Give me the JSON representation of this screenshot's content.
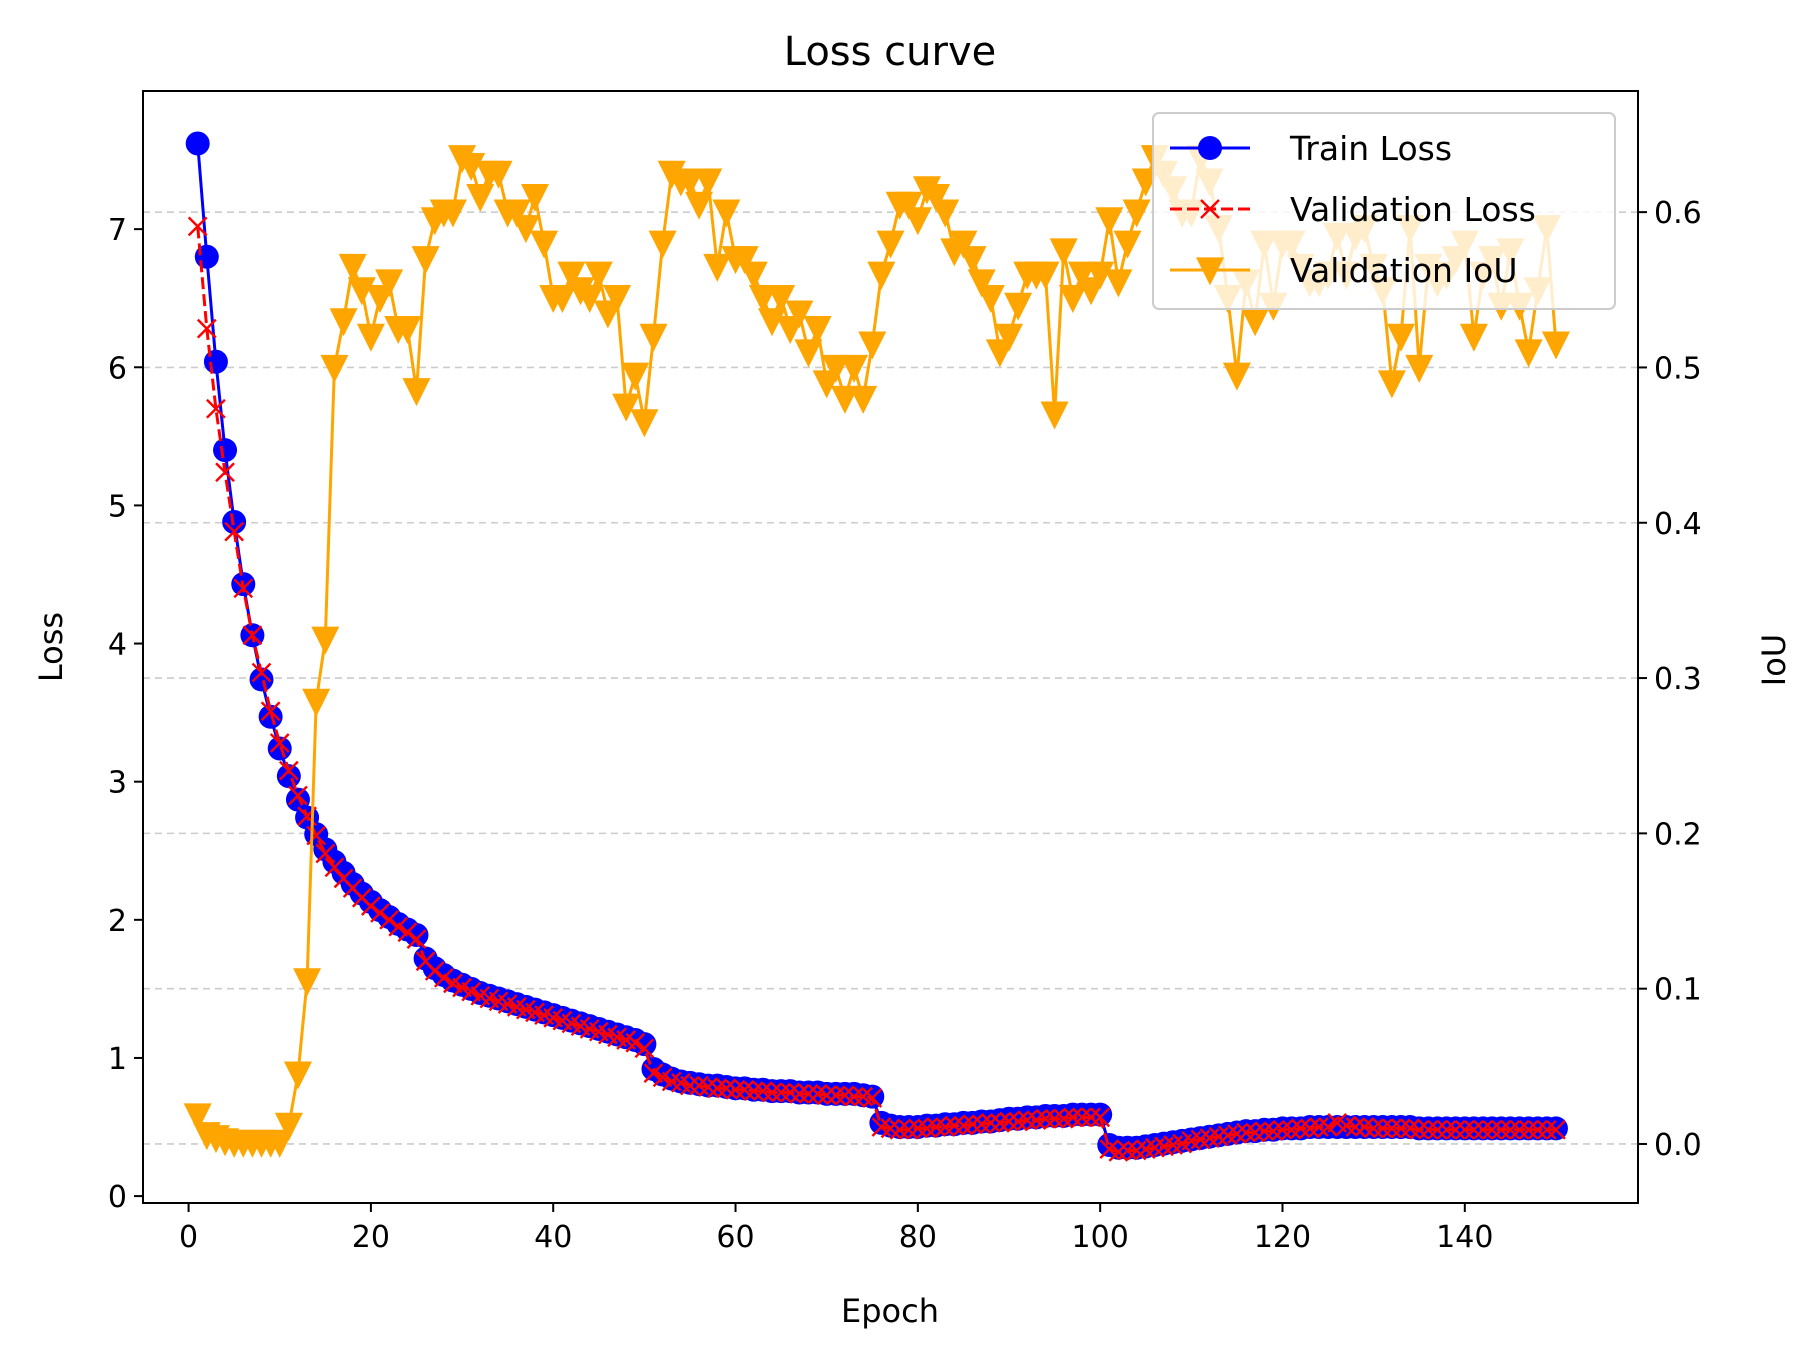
{
  "chart_data": {
    "type": "line",
    "title": "Loss curve",
    "xlabel": "Epoch",
    "ylabel": "Loss",
    "ylabel_right": "IoU",
    "xlim": [
      -5,
      159
    ],
    "ylim": [
      -0.05,
      8.0
    ],
    "ylim_right": [
      -0.038,
      0.678
    ],
    "xticks": [
      0,
      20,
      40,
      60,
      80,
      100,
      120,
      140
    ],
    "yticks": [
      0,
      1,
      2,
      3,
      4,
      5,
      6,
      7
    ],
    "yticks_right": [
      0.0,
      0.1,
      0.2,
      0.3,
      0.4,
      0.5,
      0.6
    ],
    "xtick_labels": [
      "0",
      "20",
      "40",
      "60",
      "80",
      "100",
      "120",
      "140"
    ],
    "ytick_labels": [
      "0",
      "1",
      "2",
      "3",
      "4",
      "5",
      "6",
      "7"
    ],
    "ytick_labels_right": [
      "0.0",
      "0.1",
      "0.2",
      "0.3",
      "0.4",
      "0.5",
      "0.6"
    ],
    "grid": "horizontal dashed, right axis",
    "legend_position": "top-right",
    "series": [
      {
        "name": "Train Loss",
        "axis": "left",
        "color": "#0000ff",
        "marker": "circle",
        "x_start": 1,
        "values": [
          7.62,
          6.8,
          6.04,
          5.4,
          4.88,
          4.43,
          4.06,
          3.74,
          3.47,
          3.24,
          3.04,
          2.87,
          2.74,
          2.62,
          2.51,
          2.42,
          2.34,
          2.26,
          2.19,
          2.13,
          2.07,
          2.02,
          1.97,
          1.93,
          1.89,
          1.72,
          1.65,
          1.6,
          1.56,
          1.53,
          1.5,
          1.47,
          1.45,
          1.43,
          1.41,
          1.39,
          1.37,
          1.35,
          1.33,
          1.31,
          1.29,
          1.27,
          1.25,
          1.23,
          1.21,
          1.19,
          1.17,
          1.15,
          1.13,
          1.1,
          0.92,
          0.88,
          0.85,
          0.83,
          0.82,
          0.81,
          0.8,
          0.8,
          0.79,
          0.78,
          0.78,
          0.77,
          0.77,
          0.76,
          0.76,
          0.76,
          0.75,
          0.75,
          0.75,
          0.74,
          0.74,
          0.74,
          0.74,
          0.73,
          0.72,
          0.53,
          0.51,
          0.5,
          0.5,
          0.5,
          0.51,
          0.51,
          0.52,
          0.52,
          0.53,
          0.53,
          0.54,
          0.54,
          0.55,
          0.56,
          0.56,
          0.57,
          0.57,
          0.58,
          0.58,
          0.58,
          0.59,
          0.59,
          0.59,
          0.59,
          0.37,
          0.35,
          0.35,
          0.35,
          0.36,
          0.37,
          0.38,
          0.39,
          0.4,
          0.41,
          0.42,
          0.43,
          0.44,
          0.45,
          0.46,
          0.47,
          0.47,
          0.48,
          0.48,
          0.49,
          0.49,
          0.49,
          0.5,
          0.5,
          0.5,
          0.5,
          0.5,
          0.5,
          0.5,
          0.5,
          0.5,
          0.5,
          0.5,
          0.5,
          0.49,
          0.49,
          0.49,
          0.49,
          0.49,
          0.49,
          0.49,
          0.49,
          0.49,
          0.49,
          0.49,
          0.49,
          0.49,
          0.49,
          0.49,
          0.49
        ]
      },
      {
        "name": "Validation Loss",
        "axis": "left",
        "color": "#ff0000",
        "marker": "x",
        "dashed": true,
        "x_start": 1,
        "values": [
          7.02,
          6.28,
          5.7,
          5.24,
          4.81,
          4.4,
          4.06,
          3.79,
          3.51,
          3.28,
          3.08,
          2.9,
          2.75,
          2.61,
          2.48,
          2.38,
          2.3,
          2.23,
          2.16,
          2.1,
          2.05,
          2.0,
          1.95,
          1.91,
          1.86,
          1.7,
          1.63,
          1.58,
          1.54,
          1.51,
          1.48,
          1.45,
          1.43,
          1.41,
          1.39,
          1.37,
          1.35,
          1.33,
          1.31,
          1.29,
          1.27,
          1.25,
          1.23,
          1.21,
          1.19,
          1.17,
          1.15,
          1.13,
          1.11,
          1.07,
          0.89,
          0.86,
          0.83,
          0.82,
          0.8,
          0.8,
          0.79,
          0.78,
          0.78,
          0.77,
          0.77,
          0.76,
          0.76,
          0.75,
          0.75,
          0.75,
          0.74,
          0.74,
          0.74,
          0.73,
          0.73,
          0.73,
          0.72,
          0.72,
          0.71,
          0.5,
          0.49,
          0.48,
          0.48,
          0.49,
          0.49,
          0.5,
          0.5,
          0.51,
          0.51,
          0.52,
          0.52,
          0.53,
          0.53,
          0.54,
          0.54,
          0.55,
          0.55,
          0.56,
          0.56,
          0.56,
          0.57,
          0.57,
          0.57,
          0.57,
          0.34,
          0.32,
          0.33,
          0.33,
          0.34,
          0.35,
          0.36,
          0.37,
          0.38,
          0.4,
          0.41,
          0.42,
          0.43,
          0.44,
          0.45,
          0.46,
          0.46,
          0.47,
          0.47,
          0.48,
          0.48,
          0.49,
          0.49,
          0.5,
          0.5,
          0.53,
          0.51,
          0.5,
          0.5,
          0.49,
          0.49,
          0.49,
          0.49,
          0.49,
          0.48,
          0.48,
          0.48,
          0.48,
          0.48,
          0.48,
          0.48,
          0.48,
          0.48,
          0.48,
          0.48,
          0.48,
          0.48,
          0.48,
          0.48,
          0.48
        ]
      },
      {
        "name": "Validation IoU",
        "axis": "right",
        "color": "#ffa500",
        "marker": "triangle-down",
        "x_start": 1,
        "values": [
          0.018,
          0.006,
          0.004,
          0.002,
          0.001,
          0.001,
          0.001,
          0.001,
          0.001,
          0.001,
          0.012,
          0.045,
          0.105,
          0.285,
          0.325,
          0.5,
          0.53,
          0.565,
          0.55,
          0.52,
          0.545,
          0.555,
          0.525,
          0.525,
          0.485,
          0.57,
          0.595,
          0.6,
          0.6,
          0.635,
          0.63,
          0.61,
          0.625,
          0.625,
          0.6,
          0.6,
          0.59,
          0.61,
          0.58,
          0.545,
          0.545,
          0.56,
          0.55,
          0.545,
          0.56,
          0.535,
          0.545,
          0.475,
          0.495,
          0.465,
          0.52,
          0.58,
          0.625,
          0.62,
          0.62,
          0.605,
          0.62,
          0.565,
          0.6,
          0.57,
          0.57,
          0.56,
          0.545,
          0.53,
          0.545,
          0.525,
          0.535,
          0.51,
          0.525,
          0.49,
          0.5,
          0.48,
          0.5,
          0.48,
          0.515,
          0.56,
          0.58,
          0.605,
          0.605,
          0.595,
          0.615,
          0.61,
          0.6,
          0.575,
          0.58,
          0.57,
          0.555,
          0.545,
          0.51,
          0.52,
          0.54,
          0.56,
          0.56,
          0.56,
          0.47,
          0.575,
          0.545,
          0.56,
          0.55,
          0.56,
          0.595,
          0.555,
          0.58,
          0.6,
          0.62,
          0.635,
          0.625,
          0.615,
          0.6,
          0.6,
          0.635,
          0.62,
          0.59,
          0.545,
          0.495,
          0.555,
          0.53,
          0.58,
          0.54,
          0.58,
          0.58,
          0.565,
          0.555,
          0.555,
          0.56,
          0.585,
          0.56,
          0.585,
          0.59,
          0.565,
          0.55,
          0.49,
          0.52,
          0.59,
          0.5,
          0.565,
          0.555,
          0.56,
          0.57,
          0.58,
          0.52,
          0.56,
          0.57,
          0.54,
          0.575,
          0.54,
          0.51,
          0.55,
          0.59,
          0.515
        ]
      }
    ]
  }
}
